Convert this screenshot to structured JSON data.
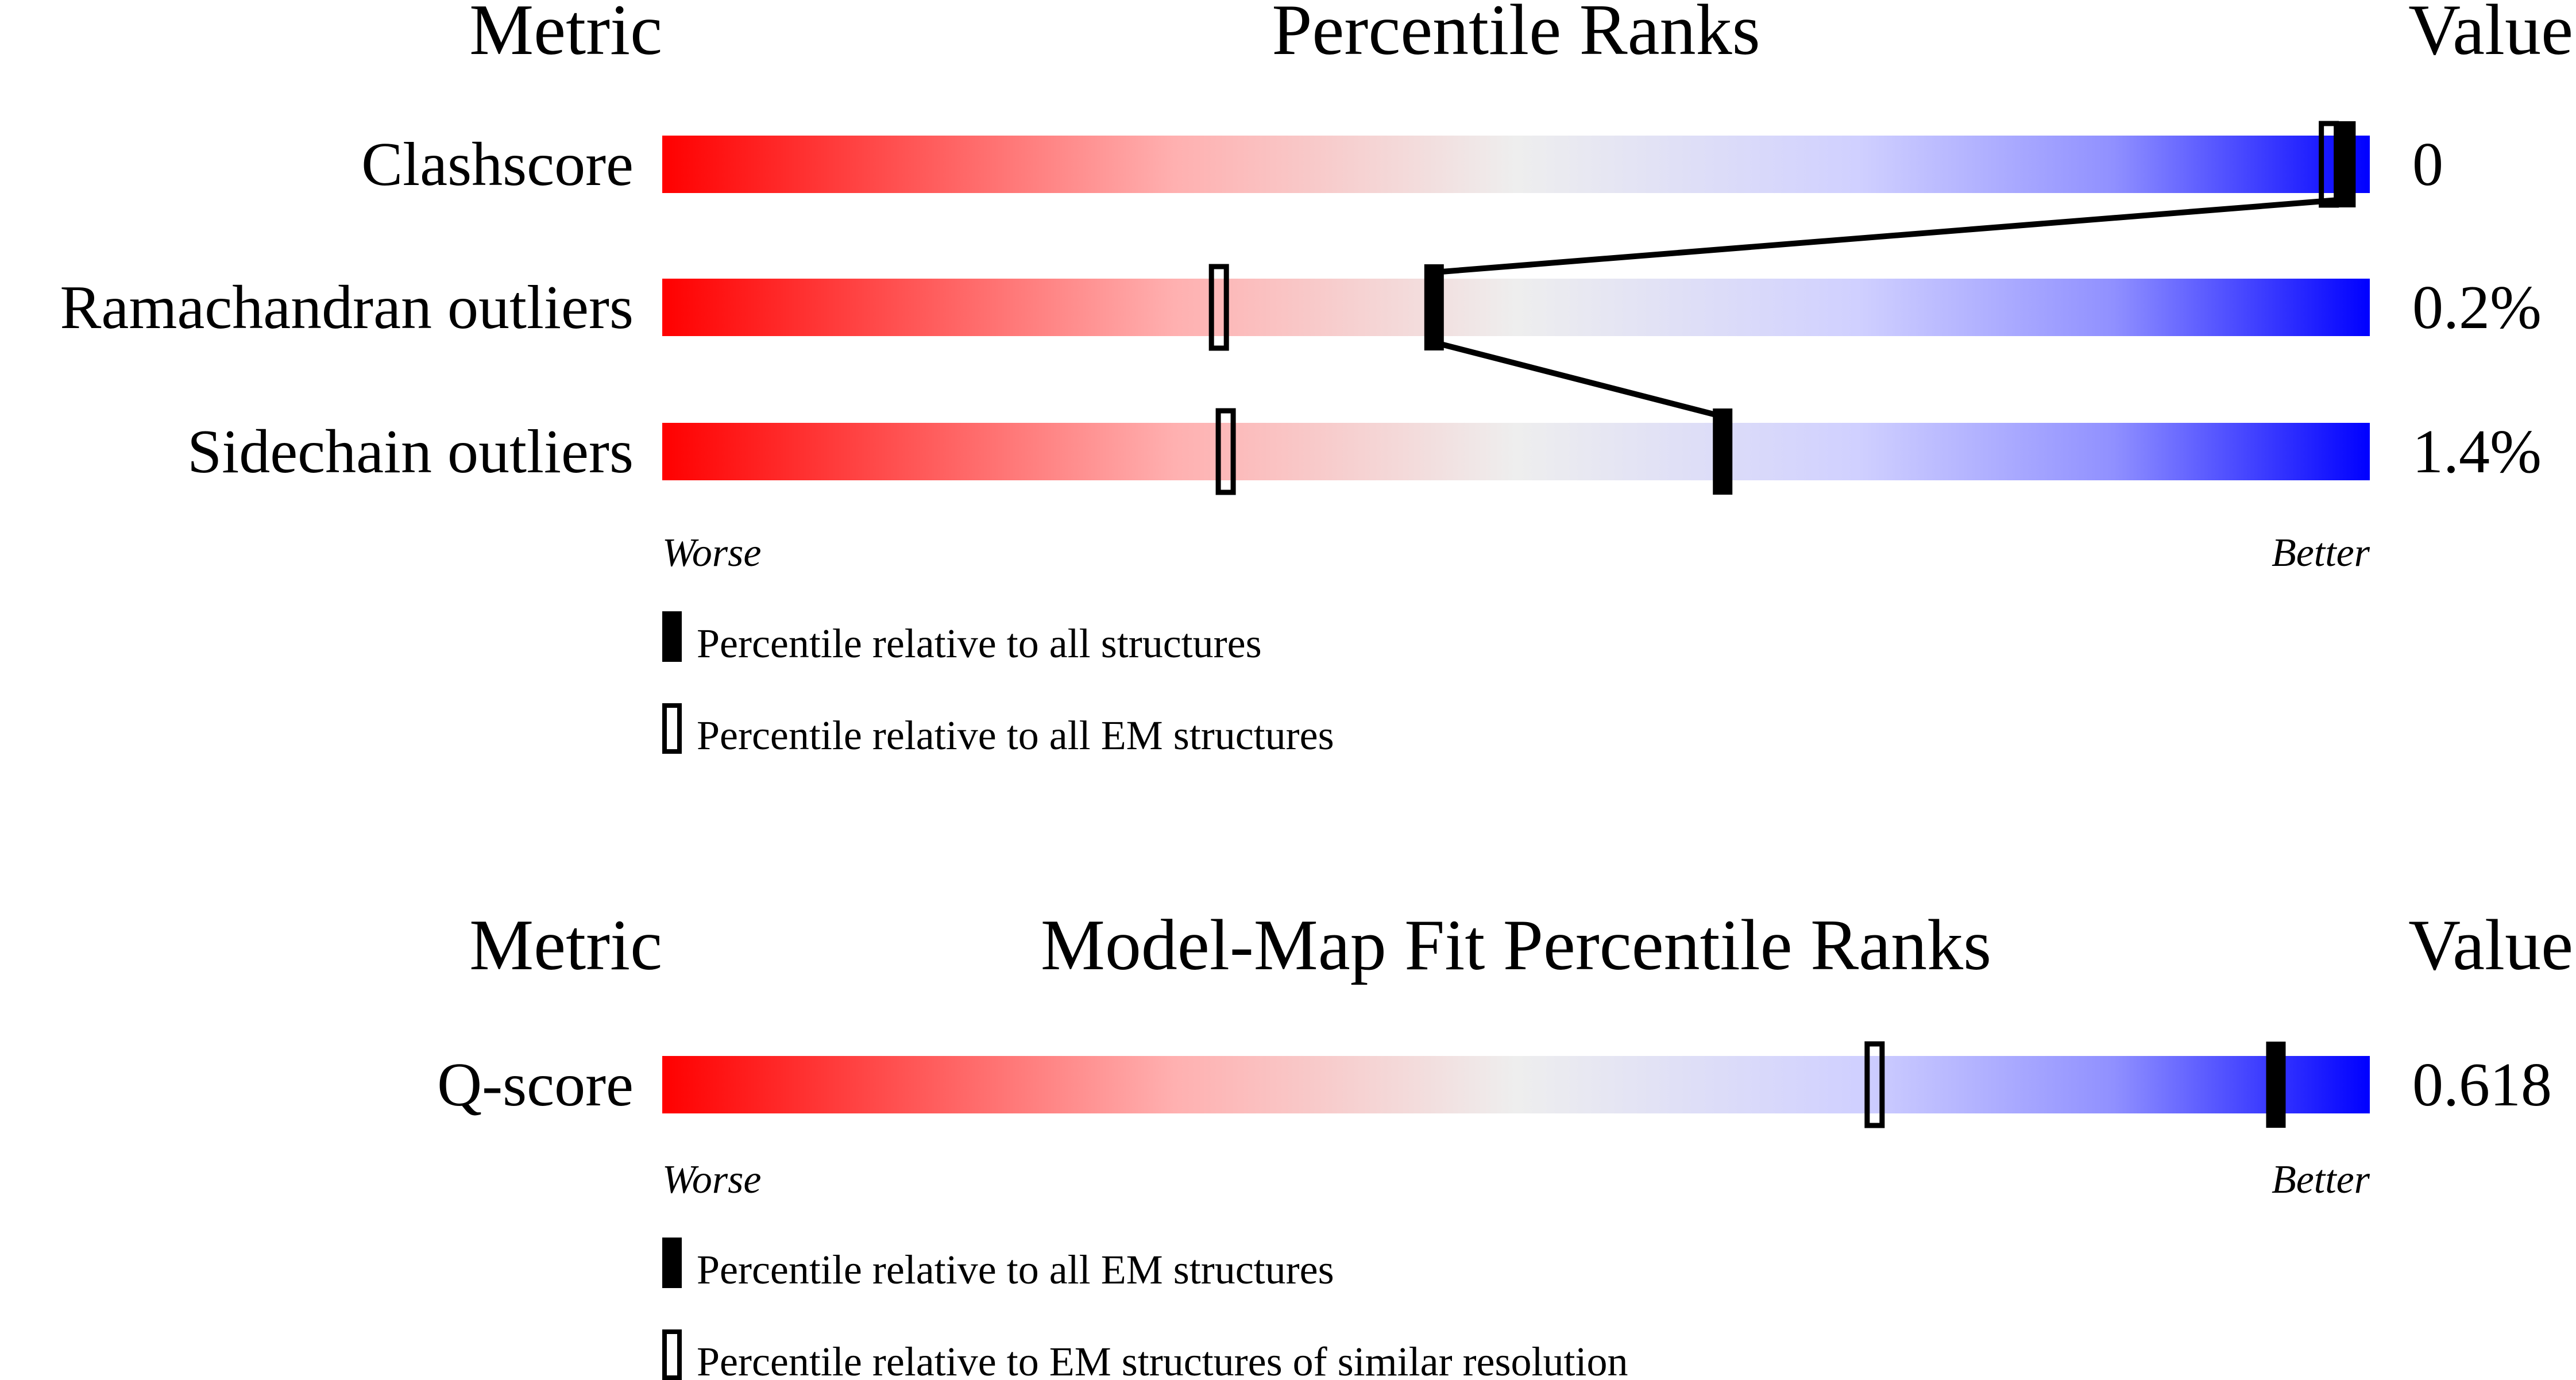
{
  "chart_data": [
    {
      "type": "bar",
      "headers": {
        "metric": "Metric",
        "title": "Percentile Ranks",
        "value": "Value"
      },
      "xlim": [
        0,
        100
      ],
      "scale_labels": {
        "worse": "Worse",
        "better": "Better"
      },
      "rows": [
        {
          "metric": "Clashscore",
          "value": "0",
          "percentile_all": 98.6,
          "percentile_em": 97.6
        },
        {
          "metric": "Ramachandran outliers",
          "value": "0.2%",
          "percentile_all": 45.2,
          "percentile_em": 32.6
        },
        {
          "metric": "Sidechain outliers",
          "value": "1.4%",
          "percentile_all": 62.1,
          "percentile_em": 33.0
        }
      ],
      "legend": [
        {
          "marker": "filled",
          "label": "Percentile relative to all structures"
        },
        {
          "marker": "hollow",
          "label": "Percentile relative to all EM structures"
        }
      ]
    },
    {
      "type": "bar",
      "headers": {
        "metric": "Metric",
        "title": "Model-Map Fit Percentile Ranks",
        "value": "Value"
      },
      "xlim": [
        0,
        100
      ],
      "scale_labels": {
        "worse": "Worse",
        "better": "Better"
      },
      "rows": [
        {
          "metric": "Q-score",
          "value": "0.618",
          "percentile_all": 94.5,
          "percentile_em": 71.0
        }
      ],
      "legend": [
        {
          "marker": "filled",
          "label": "Percentile relative to all EM structures"
        },
        {
          "marker": "hollow",
          "label": "Percentile relative to EM structures of similar resolution"
        }
      ]
    }
  ],
  "colors": {
    "worse": "#ff0000",
    "mid": "#eeeeee",
    "better": "#0000ff"
  }
}
